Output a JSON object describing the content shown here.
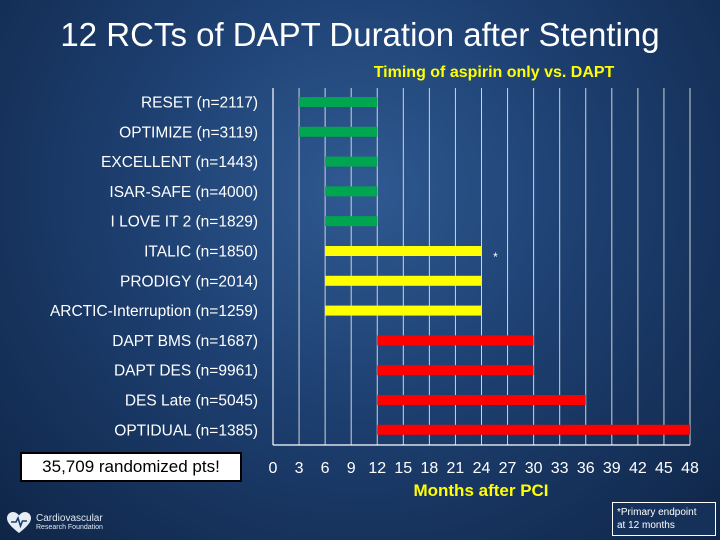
{
  "slide": {
    "title": "12 RCTs of DAPT Duration after Stenting",
    "callout": "35,709 randomized pts!",
    "footnote_line1": "*Primary endpoint",
    "footnote_line2": "at 12 months",
    "logo_line1": "Cardiovascular",
    "logo_line2": "Research Foundation"
  },
  "colors": {
    "green": "#00a64f",
    "yellow": "#ffff00",
    "red": "#ff0000",
    "grid": "#d0d4da",
    "axis": "#ffffff"
  },
  "chart_data": {
    "type": "bar",
    "orientation": "horizontal-range",
    "title": "Timing of aspirin only vs. DAPT",
    "xlabel": "Months after PCI",
    "xlim": [
      0,
      48
    ],
    "xticks": [
      0,
      3,
      6,
      9,
      12,
      15,
      18,
      21,
      24,
      27,
      30,
      33,
      36,
      39,
      42,
      45,
      48
    ],
    "grid": true,
    "rows": [
      {
        "label": "RESET (n=2117)",
        "start": 3,
        "end": 12,
        "color": "green",
        "marker": ""
      },
      {
        "label": "OPTIMIZE (n=3119)",
        "start": 3,
        "end": 12,
        "color": "green",
        "marker": ""
      },
      {
        "label": "EXCELLENT (n=1443)",
        "start": 6,
        "end": 12,
        "color": "green",
        "marker": ""
      },
      {
        "label": "ISAR-SAFE (n=4000)",
        "start": 6,
        "end": 12,
        "color": "green",
        "marker": ""
      },
      {
        "label": "I LOVE IT 2 (n=1829)",
        "start": 6,
        "end": 12,
        "color": "green",
        "marker": ""
      },
      {
        "label": "ITALIC (n=1850)",
        "start": 6,
        "end": 24,
        "color": "yellow",
        "marker": "*"
      },
      {
        "label": "PRODIGY (n=2014)",
        "start": 6,
        "end": 24,
        "color": "yellow",
        "marker": ""
      },
      {
        "label": "ARCTIC-Interruption (n=1259)",
        "start": 6,
        "end": 24,
        "color": "yellow",
        "marker": ""
      },
      {
        "label": "DAPT BMS (n=1687)",
        "start": 12,
        "end": 30,
        "color": "red",
        "marker": ""
      },
      {
        "label": "DAPT DES (n=9961)",
        "start": 12,
        "end": 30,
        "color": "red",
        "marker": ""
      },
      {
        "label": "DES Late (n=5045)",
        "start": 12,
        "end": 36,
        "color": "red",
        "marker": ""
      },
      {
        "label": "OPTIDUAL (n=1385)",
        "start": 12,
        "end": 48,
        "color": "red",
        "marker": ""
      }
    ]
  }
}
